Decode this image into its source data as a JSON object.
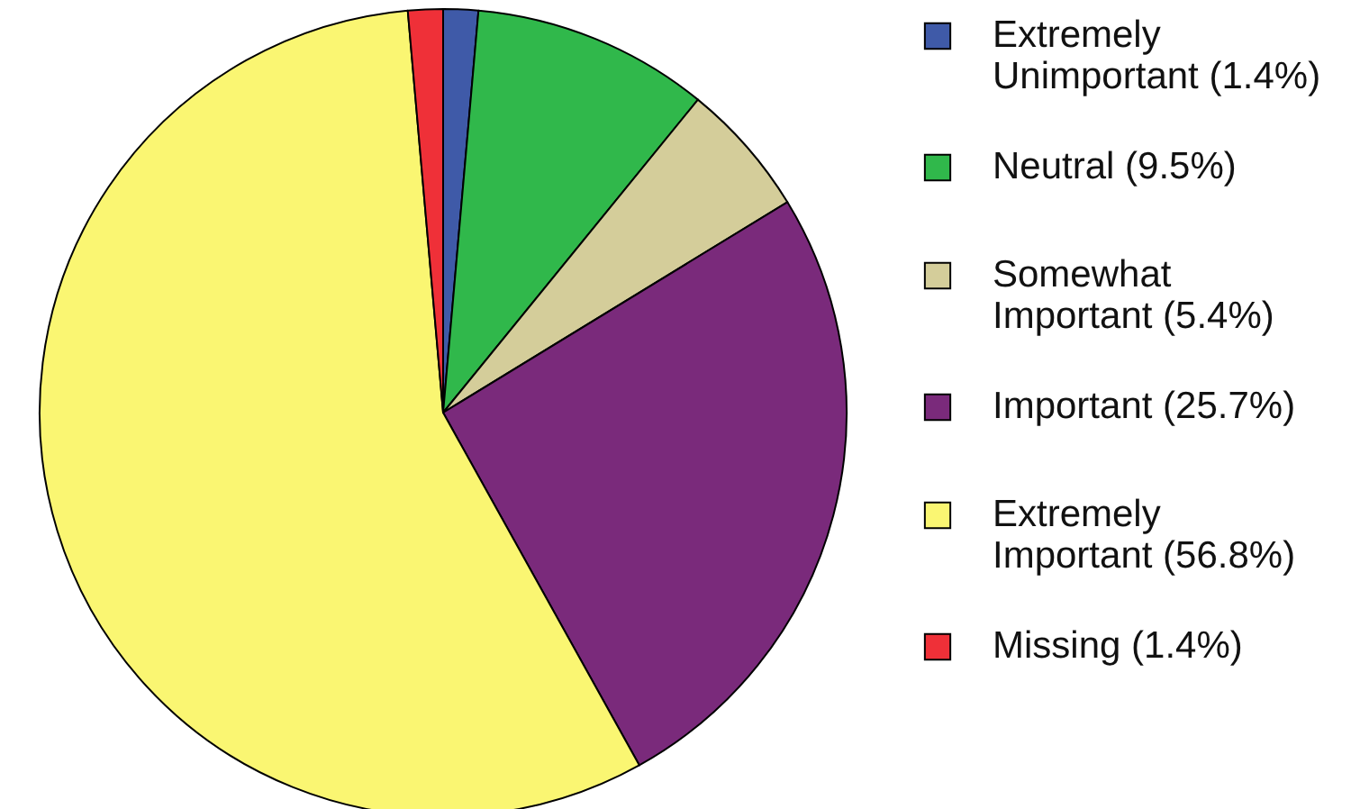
{
  "chart_data": {
    "type": "pie",
    "categories": [
      "Extremely Unimportant (1.4%)",
      "Neutral (9.5%)",
      "Somewhat Important (5.4%)",
      "Important (25.7%)",
      "Extremely Important (56.8%)",
      "Missing (1.4%)"
    ],
    "values": [
      1.4,
      9.5,
      5.4,
      25.7,
      56.8,
      1.4
    ],
    "colors": [
      "#3f5aa8",
      "#30b84b",
      "#d4cd9a",
      "#7a2a7b",
      "#faf672",
      "#ef3038"
    ],
    "legend": "right"
  }
}
